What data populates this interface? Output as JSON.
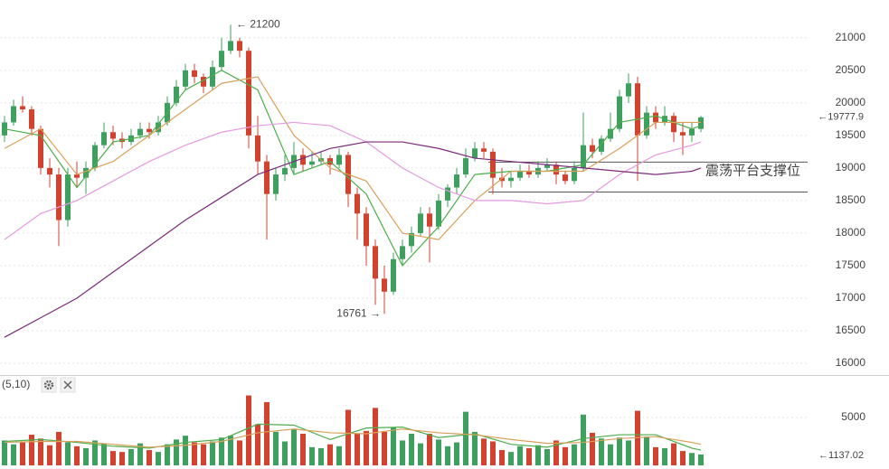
{
  "chart_data": {
    "type": "candlestick",
    "up_color": "#3e9f5f",
    "down_color": "#d2432f",
    "ylim": [
      15820,
      21580
    ],
    "yticks": [
      16000,
      16500,
      17000,
      17500,
      18000,
      18500,
      19000,
      19500,
      20000,
      20500,
      21000
    ],
    "grid": true,
    "candles": [
      [
        19500,
        19800,
        19400,
        19700
      ],
      [
        19700,
        20050,
        19650,
        19950
      ],
      [
        19950,
        20100,
        19850,
        19900
      ],
      [
        19900,
        19950,
        19500,
        19600
      ],
      [
        19600,
        19650,
        18900,
        19000
      ],
      [
        19000,
        19150,
        18700,
        18900
      ],
      [
        18900,
        19000,
        17800,
        18200
      ],
      [
        18200,
        19000,
        18100,
        18900
      ],
      [
        18900,
        19100,
        18700,
        18850
      ],
      [
        18850,
        19100,
        18600,
        19000
      ],
      [
        19000,
        19400,
        18950,
        19350
      ],
      [
        19350,
        19700,
        19300,
        19550
      ],
      [
        19550,
        19650,
        19350,
        19450
      ],
      [
        19450,
        19550,
        19300,
        19400
      ],
      [
        19400,
        19600,
        19350,
        19500
      ],
      [
        19500,
        19700,
        19450,
        19600
      ],
      [
        19600,
        19700,
        19450,
        19550
      ],
      [
        19550,
        19800,
        19500,
        19700
      ],
      [
        19700,
        20100,
        19650,
        20000
      ],
      [
        20000,
        20350,
        19950,
        20250
      ],
      [
        20250,
        20600,
        20200,
        20500
      ],
      [
        20500,
        20600,
        20300,
        20400
      ],
      [
        20400,
        20450,
        20150,
        20250
      ],
      [
        20250,
        20650,
        20200,
        20550
      ],
      [
        20550,
        21000,
        20500,
        20800
      ],
      [
        20800,
        21200,
        20750,
        20950
      ],
      [
        20950,
        21000,
        20700,
        20800
      ],
      [
        20800,
        20850,
        19300,
        19500
      ],
      [
        19500,
        19800,
        18900,
        19100
      ],
      [
        19100,
        19200,
        17900,
        18600
      ],
      [
        18600,
        19000,
        18500,
        18900
      ],
      [
        18900,
        19200,
        18800,
        19000
      ],
      [
        19000,
        19400,
        18900,
        19200
      ],
      [
        19200,
        19300,
        18950,
        19050
      ],
      [
        19050,
        19250,
        19000,
        19100
      ],
      [
        19100,
        19250,
        19050,
        19150
      ],
      [
        19150,
        19200,
        18900,
        19050
      ],
      [
        19050,
        19300,
        19000,
        19200
      ],
      [
        19200,
        19250,
        18400,
        18600
      ],
      [
        18600,
        18700,
        17900,
        18300
      ],
      [
        18300,
        18400,
        17500,
        17800
      ],
      [
        17800,
        17900,
        16900,
        17300
      ],
      [
        17300,
        17500,
        16761,
        17100
      ],
      [
        17100,
        17700,
        17050,
        17600
      ],
      [
        17600,
        17900,
        17500,
        17800
      ],
      [
        17800,
        18100,
        17700,
        18000
      ],
      [
        18000,
        18400,
        17950,
        18300
      ],
      [
        18300,
        18400,
        17550,
        18100
      ],
      [
        18100,
        18600,
        18050,
        18500
      ],
      [
        18500,
        18750,
        18400,
        18700
      ],
      [
        18700,
        19000,
        18600,
        18900
      ],
      [
        18900,
        19300,
        18850,
        19150
      ],
      [
        19150,
        19400,
        19100,
        19300
      ],
      [
        19300,
        19400,
        19150,
        19250
      ],
      [
        19250,
        19300,
        18600,
        18850
      ],
      [
        18850,
        19000,
        18700,
        18800
      ],
      [
        18800,
        18950,
        18700,
        18850
      ],
      [
        18850,
        19050,
        18800,
        18950
      ],
      [
        18950,
        19050,
        18850,
        18900
      ],
      [
        18900,
        19100,
        18850,
        19000
      ],
      [
        19000,
        19150,
        18950,
        19050
      ],
      [
        19050,
        19100,
        18750,
        18900
      ],
      [
        18900,
        18950,
        18750,
        18800
      ],
      [
        18800,
        19100,
        18750,
        19000
      ],
      [
        19000,
        19850,
        18950,
        19350
      ],
      [
        19350,
        19450,
        19150,
        19250
      ],
      [
        19250,
        19500,
        19200,
        19450
      ],
      [
        19450,
        19850,
        19400,
        19600
      ],
      [
        19600,
        20200,
        19550,
        20100
      ],
      [
        20100,
        20450,
        20000,
        20300
      ],
      [
        20300,
        20400,
        18800,
        19500
      ],
      [
        19500,
        19950,
        19450,
        19850
      ],
      [
        19850,
        19950,
        19600,
        19700
      ],
      [
        19700,
        19950,
        19650,
        19800
      ],
      [
        19800,
        19850,
        19400,
        19550
      ],
      [
        19550,
        19700,
        19200,
        19500
      ],
      [
        19500,
        19700,
        19400,
        19600
      ],
      [
        19600,
        19800,
        19550,
        19777.9
      ]
    ],
    "ma_lines": [
      {
        "color": "#4cae4c",
        "x": [
          0,
          4,
          8,
          12,
          16,
          20,
          24,
          28,
          32,
          36,
          40,
          44,
          48,
          52,
          56,
          60,
          64,
          68,
          72,
          76,
          77
        ],
        "values": [
          19600,
          19500,
          18700,
          19400,
          19500,
          20200,
          20500,
          20200,
          18900,
          19100,
          18600,
          17500,
          18100,
          18900,
          18950,
          18950,
          19050,
          19700,
          19800,
          19600,
          19650
        ]
      },
      {
        "color": "#d9a05b",
        "x": [
          0,
          4,
          8,
          12,
          16,
          20,
          24,
          28,
          32,
          36,
          40,
          44,
          48,
          52,
          56,
          60,
          64,
          68,
          72,
          76,
          77
        ],
        "values": [
          19300,
          19600,
          18900,
          19100,
          19500,
          19900,
          20300,
          20400,
          19500,
          19000,
          18800,
          18000,
          17900,
          18500,
          18950,
          18950,
          18950,
          19300,
          19700,
          19700,
          19700
        ]
      },
      {
        "color": "#e59ae0",
        "x": [
          0,
          4,
          8,
          12,
          16,
          20,
          24,
          28,
          32,
          36,
          40,
          44,
          48,
          52,
          56,
          60,
          64,
          68,
          72,
          76,
          77
        ],
        "values": [
          17900,
          18300,
          18500,
          18800,
          19100,
          19350,
          19550,
          19650,
          19700,
          19650,
          19400,
          19000,
          18700,
          18500,
          18500,
          18450,
          18500,
          18900,
          19200,
          19350,
          19400
        ]
      },
      {
        "color": "#7b2a7b",
        "x": [
          0,
          4,
          8,
          12,
          16,
          20,
          24,
          28,
          32,
          36,
          40,
          44,
          48,
          52,
          56,
          60,
          64,
          68,
          72,
          76,
          77
        ],
        "values": [
          16400,
          16700,
          17000,
          17400,
          17800,
          18200,
          18550,
          18900,
          19100,
          19300,
          19400,
          19400,
          19300,
          19150,
          19100,
          19050,
          19000,
          18950,
          18900,
          18950,
          19000
        ]
      }
    ],
    "support_lines": [
      19090,
      18630
    ],
    "support_start": 54,
    "support_label": "震荡平台支撑位",
    "high_label": "← 21200",
    "high_index": 25,
    "low_label": "16761 →",
    "low_index": 42,
    "last_price_label": "←19777.9",
    "volume": [
      2600,
      2200,
      2400,
      3200,
      2800,
      2100,
      3500,
      2400,
      2000,
      1800,
      2600,
      2300,
      1500,
      1400,
      1700,
      2300,
      1600,
      1400,
      2200,
      2700,
      3100,
      2400,
      2200,
      2500,
      2900,
      3100,
      2600,
      7300,
      4300,
      6600,
      3500,
      2500,
      3800,
      3300,
      1900,
      1800,
      2200,
      2000,
      5800,
      3300,
      3600,
      6000,
      3500,
      4000,
      2600,
      3300,
      2300,
      3300,
      2700,
      2000,
      2400,
      5600,
      3500,
      2800,
      2500,
      1600,
      1400,
      2000,
      1800,
      2100,
      1700,
      2600,
      1900,
      2200,
      5300,
      3400,
      2800,
      2200,
      2900,
      2600,
      5700,
      3000,
      1900,
      1800,
      2300,
      1500,
      1300,
      1137.02
    ],
    "volume_ylim": [
      0,
      9150
    ],
    "volume_yticks": [
      5000
    ],
    "volume_ma_lines": [
      {
        "color": "#4cae4c",
        "x": [
          0,
          4,
          8,
          12,
          16,
          20,
          24,
          28,
          32,
          36,
          40,
          44,
          48,
          52,
          56,
          60,
          64,
          68,
          72,
          76,
          77
        ],
        "values": [
          2500,
          2700,
          2400,
          2000,
          1800,
          2400,
          2700,
          4300,
          4200,
          2700,
          3900,
          4000,
          2900,
          3300,
          2200,
          1900,
          2800,
          3200,
          3200,
          1800,
          1600
        ]
      },
      {
        "color": "#d9a05b",
        "x": [
          0,
          4,
          8,
          12,
          16,
          20,
          24,
          28,
          32,
          36,
          40,
          44,
          48,
          52,
          56,
          60,
          64,
          68,
          72,
          76,
          77
        ],
        "values": [
          2400,
          2500,
          2500,
          2200,
          1900,
          2100,
          2500,
          3400,
          3800,
          3400,
          3300,
          3800,
          3400,
          3200,
          2700,
          2300,
          2400,
          2800,
          3000,
          2400,
          2200
        ]
      }
    ],
    "volume_panel_label": "(5,10)",
    "last_volume_label": "←1137.02"
  }
}
